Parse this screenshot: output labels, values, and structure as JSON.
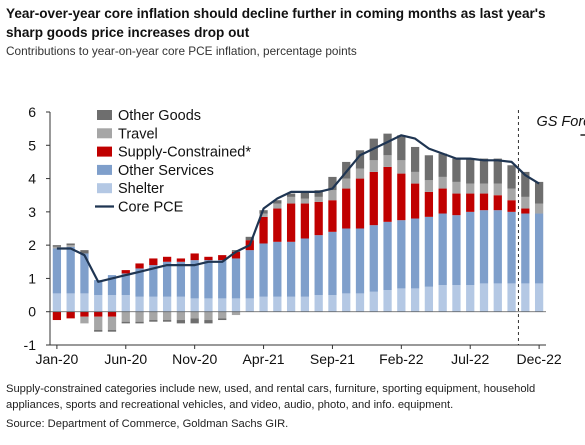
{
  "title": "Year-over-year core inflation should decline further in coming months as last year's sharp goods price increases drop out",
  "subtitle": "Contributions to year-on-year core PCE inflation, percentage points",
  "notes": {
    "footnote": "Supply-constrained categories include new, used, and rental cars, furniture, sporting equipment, household appliances, sports and recreational vehicles, and video, audio, photo, and info. equipment.",
    "source": "Source: Department of Commerce, Goldman Sachs GIR."
  },
  "chart_data": {
    "type": "bar",
    "stacked": true,
    "title": "Year-over-year core inflation should decline further in coming months as last year's sharp goods price increases drop out",
    "subtitle": "Contributions to year-on-year core PCE inflation, percentage points",
    "xlabel": "",
    "ylabel": "",
    "ylim": [
      -1,
      6
    ],
    "yticks": [
      -1,
      0,
      1,
      2,
      3,
      4,
      5,
      6
    ],
    "grid": false,
    "legend_position": "top-left",
    "annotation": "GS Forecast",
    "forecast_start": "Nov-22",
    "colors": {
      "other_goods": "#6e6e6e",
      "travel": "#a6a6a6",
      "supply_constrained": "#c00000",
      "other_services": "#7f9fcb",
      "shelter": "#b4c8e4",
      "core_pce": "#1f3552"
    },
    "categories": [
      "Jan-20",
      "Feb-20",
      "Mar-20",
      "Apr-20",
      "May-20",
      "Jun-20",
      "Jul-20",
      "Aug-20",
      "Sep-20",
      "Oct-20",
      "Nov-20",
      "Dec-20",
      "Jan-21",
      "Feb-21",
      "Mar-21",
      "Apr-21",
      "May-21",
      "Jun-21",
      "Jul-21",
      "Aug-21",
      "Sep-21",
      "Oct-21",
      "Nov-21",
      "Dec-21",
      "Jan-22",
      "Feb-22",
      "Mar-22",
      "Apr-22",
      "May-22",
      "Jun-22",
      "Jul-22",
      "Aug-22",
      "Sep-22",
      "Oct-22",
      "Nov-22",
      "Dec-22"
    ],
    "xtick_labels": [
      "Jan-20",
      "Jun-20",
      "Nov-20",
      "Apr-21",
      "Sep-21",
      "Feb-22",
      "Jul-22",
      "Dec-22"
    ],
    "series": [
      {
        "key": "shelter",
        "name": "Shelter",
        "values": [
          0.55,
          0.55,
          0.55,
          0.5,
          0.5,
          0.5,
          0.45,
          0.45,
          0.45,
          0.45,
          0.4,
          0.4,
          0.4,
          0.4,
          0.4,
          0.45,
          0.45,
          0.45,
          0.45,
          0.5,
          0.5,
          0.55,
          0.55,
          0.6,
          0.65,
          0.7,
          0.7,
          0.75,
          0.8,
          0.8,
          0.8,
          0.85,
          0.85,
          0.85,
          0.85,
          0.85
        ]
      },
      {
        "key": "other_services",
        "name": "Other Services",
        "values": [
          1.35,
          1.4,
          1.2,
          0.45,
          0.6,
          0.65,
          0.85,
          0.95,
          1.05,
          1.05,
          1.15,
          1.15,
          1.15,
          1.2,
          1.45,
          1.6,
          1.65,
          1.65,
          1.75,
          1.8,
          1.9,
          1.95,
          1.95,
          2.0,
          2.05,
          2.05,
          2.1,
          2.1,
          2.15,
          2.1,
          2.2,
          2.2,
          2.2,
          2.15,
          2.1,
          2.1
        ]
      },
      {
        "key": "supply_constrained",
        "name": "Supply-Constrained*",
        "values": [
          -0.25,
          -0.2,
          -0.15,
          -0.15,
          -0.15,
          0.1,
          0.15,
          0.2,
          0.15,
          0.1,
          0.2,
          0.1,
          0.15,
          0.2,
          0.3,
          0.8,
          1.0,
          1.15,
          1.05,
          1.0,
          0.95,
          1.2,
          1.5,
          1.6,
          1.65,
          1.4,
          1.05,
          0.75,
          0.75,
          0.65,
          0.55,
          0.5,
          0.45,
          0.35,
          0.15,
          0.0
        ]
      },
      {
        "key": "travel",
        "name": "Travel",
        "values": [
          0.05,
          0.05,
          -0.2,
          -0.4,
          -0.4,
          -0.3,
          -0.3,
          -0.25,
          -0.25,
          -0.25,
          -0.2,
          -0.25,
          -0.2,
          -0.1,
          0.0,
          0.1,
          0.15,
          0.2,
          0.15,
          0.15,
          0.3,
          0.3,
          0.3,
          0.35,
          0.35,
          0.4,
          0.35,
          0.35,
          0.35,
          0.35,
          0.3,
          0.3,
          0.35,
          0.35,
          0.35,
          0.3
        ]
      },
      {
        "key": "other_goods",
        "name": "Other Goods",
        "values": [
          0.05,
          0.05,
          0.1,
          -0.05,
          -0.05,
          -0.05,
          -0.05,
          -0.05,
          -0.05,
          -0.1,
          -0.15,
          -0.1,
          -0.05,
          0.05,
          0.1,
          0.1,
          0.1,
          0.1,
          0.2,
          0.2,
          0.4,
          0.5,
          0.55,
          0.65,
          0.65,
          0.75,
          0.75,
          0.75,
          0.7,
          0.7,
          0.75,
          0.75,
          0.75,
          0.7,
          0.75,
          0.65
        ]
      }
    ],
    "line": {
      "key": "core_pce",
      "name": "Core PCE",
      "values": [
        1.9,
        1.9,
        1.7,
        0.9,
        1.0,
        1.1,
        1.2,
        1.3,
        1.4,
        1.4,
        1.4,
        1.5,
        1.5,
        1.8,
        2.0,
        3.1,
        3.4,
        3.6,
        3.6,
        3.6,
        3.7,
        4.2,
        4.7,
        4.9,
        5.1,
        5.3,
        5.2,
        4.9,
        4.75,
        4.6,
        4.6,
        4.55,
        4.55,
        4.5,
        4.1,
        3.85
      ]
    }
  }
}
